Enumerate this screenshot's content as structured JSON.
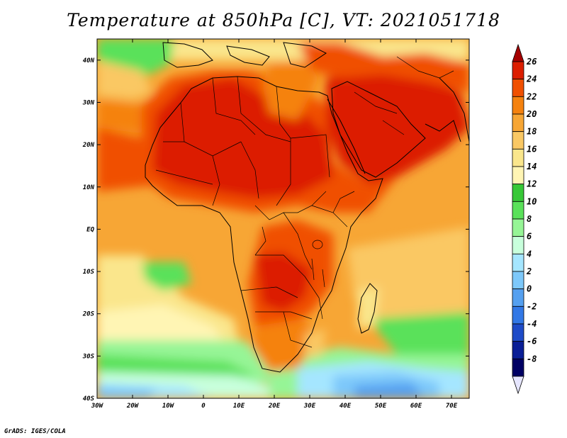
{
  "title": "Temperature at 850hPa [C], VT: 2021051718",
  "credit": "GrADS: IGES/COLA",
  "map": {
    "lat_labels": [
      "40N",
      "30N",
      "20N",
      "10N",
      "EQ",
      "10S",
      "20S",
      "30S",
      "40S"
    ],
    "lon_labels": [
      "30W",
      "20W",
      "10W",
      "0",
      "10E",
      "20E",
      "30E",
      "40E",
      "50E",
      "60E",
      "70E"
    ],
    "lon_range": [
      -30,
      75
    ],
    "lat_range": [
      -40,
      45
    ]
  },
  "colorbar": {
    "labels": [
      "26",
      "24",
      "22",
      "20",
      "18",
      "16",
      "14",
      "12",
      "10",
      "8",
      "6",
      "4",
      "2",
      "0",
      "-2",
      "-4",
      "-6",
      "-8"
    ],
    "colors": [
      "#a50000",
      "#dc1e00",
      "#f05000",
      "#f5820f",
      "#f7a635",
      "#fac864",
      "#fae68c",
      "#fff5b4",
      "#37c837",
      "#5ae15a",
      "#96f596",
      "#c8ffdc",
      "#a5e6ff",
      "#7dc8fa",
      "#55a0f0",
      "#3278e6",
      "#1e4bc8",
      "#0a1e96",
      "#000064",
      "#e6e6ff"
    ]
  }
}
